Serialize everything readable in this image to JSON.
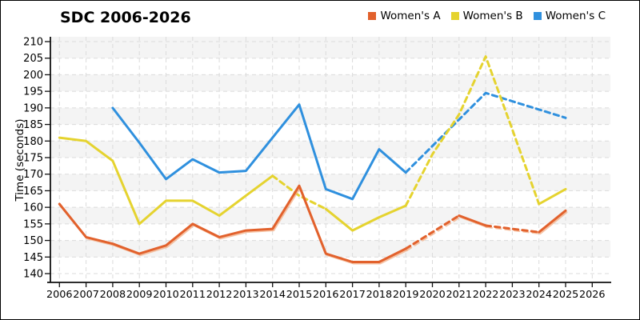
{
  "chart_data": {
    "type": "line",
    "title": "SDC 2006-2026",
    "xlabel": "",
    "ylabel": "Time (seconds)",
    "x_ticks": [
      2006,
      2007,
      2008,
      2009,
      2010,
      2011,
      2012,
      2013,
      2014,
      2015,
      2016,
      2017,
      2018,
      2019,
      2020,
      2021,
      2022,
      2023,
      2024,
      2025,
      2026
    ],
    "y_ticks": [
      140,
      145,
      150,
      155,
      160,
      165,
      170,
      175,
      180,
      185,
      190,
      195,
      200,
      205,
      210
    ],
    "ylim": [
      140,
      210
    ],
    "xlim": [
      2006,
      2026
    ],
    "grid": "dashed, both axes",
    "background_bands": "alternating 5-unit horizontal stripes",
    "legend_position": "top-right",
    "colors": {
      "grid": "#dbdbdb",
      "band": "#f4f4f4",
      "axis": "#111111",
      "text": "#000000"
    },
    "series": [
      {
        "name": "Women's A",
        "color": "#e2612c",
        "shadow_color": "#f2ab80",
        "years": [
          2006,
          2007,
          2008,
          2009,
          2010,
          2011,
          2012,
          2013,
          2014,
          2015,
          2016,
          2017,
          2018,
          2019,
          2020,
          2021,
          2022,
          2023,
          2024,
          2025
        ],
        "values": [
          161,
          151,
          149,
          146,
          148.5,
          155,
          151,
          153,
          153.5,
          166.5,
          146,
          143.5,
          143.5,
          147.5,
          152.5,
          157.5,
          154.5,
          153.5,
          152.5,
          159
        ],
        "dashed_ranges": [
          [
            2019,
            2021
          ],
          [
            2022,
            2024
          ]
        ]
      },
      {
        "name": "Women's B",
        "color": "#e5d32f",
        "years": [
          2006,
          2007,
          2008,
          2009,
          2010,
          2011,
          2012,
          2013,
          2014,
          2015,
          2016,
          2017,
          2018,
          2019,
          2020,
          2021,
          2022,
          2023,
          2024,
          2025
        ],
        "values": [
          181,
          180,
          174,
          155,
          162,
          162,
          157.5,
          163.5,
          169.5,
          163.5,
          159.5,
          153,
          157,
          160.5,
          176,
          188,
          205.5,
          183.5,
          161,
          165.5
        ],
        "dashed_ranges": [
          [
            2014,
            2016
          ],
          [
            2019,
            2024
          ]
        ]
      },
      {
        "name": "Women's C",
        "color": "#2f90de",
        "years": [
          2008,
          2009,
          2010,
          2011,
          2012,
          2013,
          2014,
          2015,
          2016,
          2017,
          2018,
          2019,
          2020,
          2021,
          2022,
          2023,
          2024,
          2025
        ],
        "values": [
          190,
          179.5,
          168.5,
          174.5,
          170.5,
          171,
          181,
          191,
          165.5,
          162.5,
          177.5,
          170.5,
          178.5,
          186.5,
          194.5,
          192,
          189.5,
          187
        ],
        "dashed_ranges": [
          [
            2019,
            2025
          ]
        ]
      }
    ]
  }
}
